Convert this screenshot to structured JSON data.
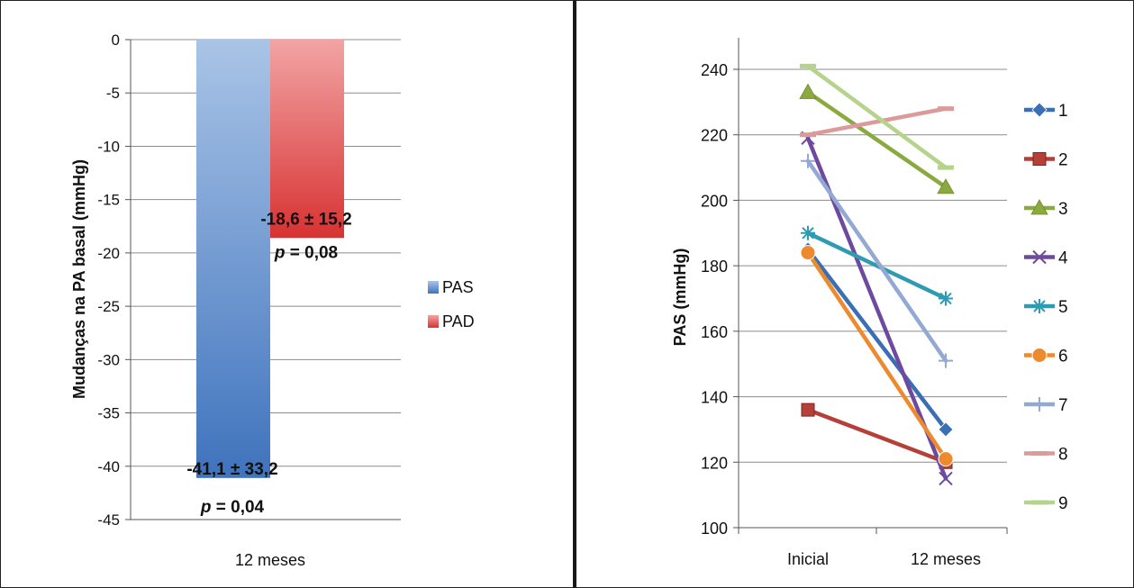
{
  "chart_data": [
    {
      "type": "bar",
      "ylabel": "Mudanças na PA basal (mmHg)",
      "categories": [
        "12 meses"
      ],
      "ylim": [
        -45,
        0
      ],
      "yticks": [
        "0",
        "-5",
        "-10",
        "-15",
        "-20",
        "-25",
        "-30",
        "-35",
        "-40",
        "-45"
      ],
      "grid": true,
      "legend_position": "right",
      "series": [
        {
          "name": "PAS",
          "values": [
            -41.1
          ],
          "color": "#4f81bd"
        },
        {
          "name": "PAD",
          "values": [
            -18.6
          ],
          "color": "#e04b4b"
        }
      ],
      "annotations": [
        {
          "series": "PAS",
          "value_text": "-41,1 ± 33,2",
          "p_label": "p",
          "p_text": " = 0,04"
        },
        {
          "series": "PAD",
          "value_text": "-18,6 ± 15,2",
          "p_label": "p",
          "p_text": " = 0,08"
        }
      ]
    },
    {
      "type": "line",
      "ylabel": "PAS (mmHg)",
      "categories": [
        "Inicial",
        "12 meses"
      ],
      "ylim": [
        100,
        240
      ],
      "yticks": [
        "100",
        "120",
        "140",
        "160",
        "180",
        "200",
        "220",
        "240"
      ],
      "grid": true,
      "legend_position": "right",
      "series": [
        {
          "name": "1",
          "values": [
            185,
            130
          ],
          "color": "#3a6fb5",
          "marker": "diamond"
        },
        {
          "name": "2",
          "values": [
            136,
            120
          ],
          "color": "#b5403a",
          "marker": "square"
        },
        {
          "name": "3",
          "values": [
            233,
            204
          ],
          "color": "#8aaa3f",
          "marker": "triangle"
        },
        {
          "name": "4",
          "values": [
            219,
            115
          ],
          "color": "#6e4a9e",
          "marker": "x"
        },
        {
          "name": "5",
          "values": [
            190,
            170
          ],
          "color": "#2f9bb3",
          "marker": "star"
        },
        {
          "name": "6",
          "values": [
            184,
            121
          ],
          "color": "#ee8a2e",
          "marker": "circle"
        },
        {
          "name": "7",
          "values": [
            212,
            151
          ],
          "color": "#93a9d3",
          "marker": "plus"
        },
        {
          "name": "8",
          "values": [
            220,
            228
          ],
          "color": "#dc9a9a",
          "marker": "dash"
        },
        {
          "name": "9",
          "values": [
            241,
            210
          ],
          "color": "#b5d38a",
          "marker": "dash"
        }
      ]
    }
  ]
}
